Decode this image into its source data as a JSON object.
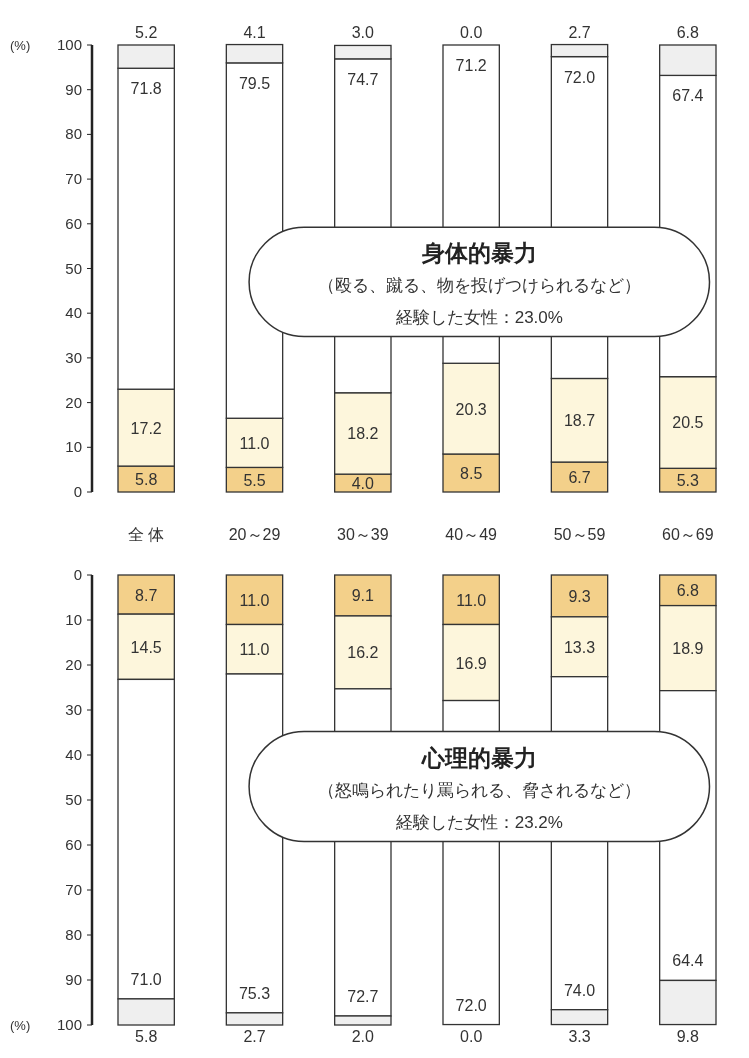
{
  "chart_data": [
    {
      "type": "bar",
      "stacked": true,
      "title": "身体的暴力",
      "subtitle": "（殴る、蹴る、物を投げつけられるなど）",
      "annotations": [
        "経験した女性：23.0%"
      ],
      "ylabel": "(%)",
      "categories": [
        "全 体",
        "20～29",
        "30～39",
        "40～49",
        "50～59",
        "60～69"
      ],
      "series": [
        {
          "color": "#f3d08a",
          "values": [
            5.8,
            5.5,
            4.0,
            8.5,
            6.7,
            5.3
          ],
          "value_labels": [
            "5.8",
            "5.5",
            "4.0",
            "8.5",
            "6.7",
            "5.3"
          ]
        },
        {
          "color": "#fdf6dc",
          "values": [
            17.2,
            11.0,
            18.2,
            20.3,
            18.7,
            20.5
          ],
          "value_labels": [
            "17.2",
            "11.0",
            "18.2",
            "20.3",
            "18.7",
            "20.5"
          ]
        },
        {
          "color": "#ffffff",
          "values": [
            71.8,
            79.5,
            74.7,
            71.2,
            72.0,
            67.4
          ],
          "value_labels": [
            "71.8",
            "79.5",
            "74.7",
            "71.2",
            "72.0",
            "67.4"
          ]
        },
        {
          "color": "#efefef",
          "values": [
            5.2,
            4.1,
            3.0,
            0.0,
            2.7,
            6.8
          ],
          "value_labels": [
            "5.2",
            "4.1",
            "3.0",
            "0.0",
            "2.7",
            "6.8"
          ]
        }
      ],
      "ylim": [
        0,
        100
      ],
      "yticks": [
        0,
        10,
        20,
        30,
        40,
        50,
        60,
        70,
        80,
        90,
        100
      ]
    },
    {
      "type": "bar",
      "stacked": true,
      "title": "心理的暴力",
      "subtitle": "（怒鳴られたり罵られる、脅されるなど）",
      "annotations": [
        "経験した女性：23.2%"
      ],
      "ylabel": "(%)",
      "categories": [
        null,
        null,
        null,
        null,
        null,
        null
      ],
      "series": [
        {
          "color": "#f3d08a",
          "values": [
            8.7,
            11.0,
            9.1,
            11.0,
            9.3,
            6.8
          ],
          "value_labels": [
            "8.7",
            "11.0",
            "9.1",
            "11.0",
            "9.3",
            "6.8"
          ]
        },
        {
          "color": "#fdf6dc",
          "values": [
            14.5,
            11.0,
            16.2,
            16.9,
            13.3,
            18.9
          ],
          "value_labels": [
            "14.5",
            "11.0",
            "16.2",
            "16.9",
            "13.3",
            "18.9"
          ]
        },
        {
          "color": "#ffffff",
          "values": [
            71.0,
            75.3,
            72.7,
            72.0,
            74.0,
            64.4
          ],
          "value_labels": [
            "71.0",
            "75.3",
            "72.7",
            "72.0",
            "74.0",
            "64.4"
          ]
        },
        {
          "color": "#efefef",
          "values": [
            5.8,
            2.7,
            2.0,
            0.0,
            3.3,
            9.8
          ],
          "value_labels": [
            "5.8",
            "2.7",
            "2.0",
            "0.0",
            "3.3",
            "9.8"
          ]
        }
      ],
      "ylim": [
        100,
        0
      ],
      "yticks": [
        0,
        10,
        20,
        30,
        40,
        50,
        60,
        70,
        80,
        90,
        100
      ],
      "tick_labels": "y"
    }
  ]
}
